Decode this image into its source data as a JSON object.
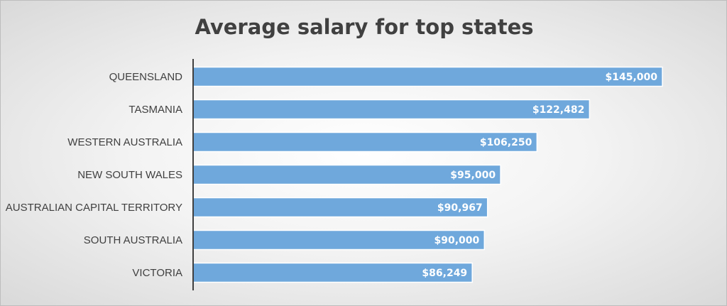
{
  "chart_data": {
    "type": "bar",
    "orientation": "horizontal",
    "title": "Average salary for top states",
    "xlabel": "",
    "ylabel": "",
    "categories": [
      "QUEENSLAND",
      "TASMANIA",
      "WESTERN AUSTRALIA",
      "NEW SOUTH WALES",
      "AUSTRALIAN CAPITAL TERRITORY",
      "SOUTH AUSTRALIA",
      "VICTORIA"
    ],
    "values": [
      145000,
      122482,
      106250,
      95000,
      90967,
      90000,
      86249
    ],
    "value_labels": [
      "$145,000",
      "$122,482",
      "$106,250",
      "$95,000",
      "$90,967",
      "$90,000",
      "$86,249"
    ],
    "xlim": [
      0,
      145000
    ],
    "grid": false,
    "legend": "none",
    "bar_color": "#6fa8dc"
  }
}
